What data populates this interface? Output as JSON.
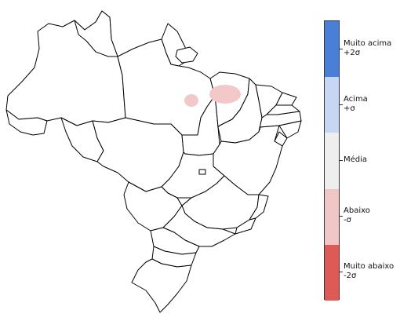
{
  "map": {
    "fill": "#ffffff",
    "stroke": "#000000",
    "anomaly_color": "#f3c8c8"
  },
  "legend": {
    "items": [
      {
        "line1": "Muito acima",
        "line2": "+2σ",
        "color": "#4a7fd8"
      },
      {
        "line1": "Acima",
        "line2": "+σ",
        "color": "#c7d6f2"
      },
      {
        "line1": "Média",
        "line2": "",
        "color": "#eeeeee"
      },
      {
        "line1": "Abaixo",
        "line2": "-σ",
        "color": "#f1c6c6"
      },
      {
        "line1": "Muito abaixo",
        "line2": "-2σ",
        "color": "#dd5a56"
      }
    ]
  }
}
